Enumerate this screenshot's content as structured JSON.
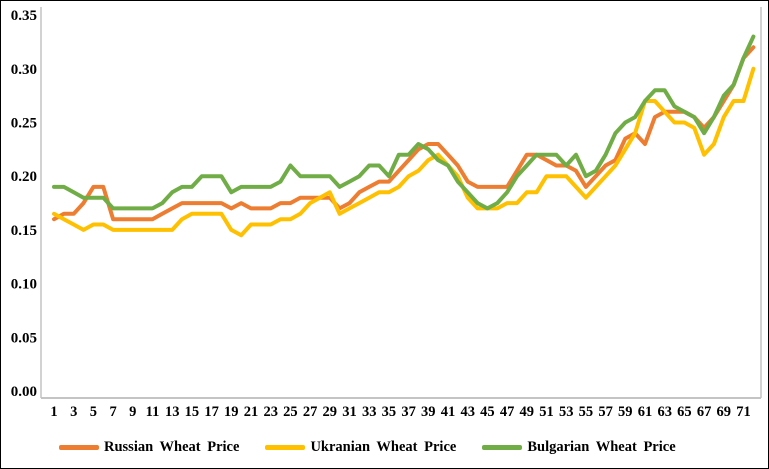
{
  "figure": {
    "background": "#ffffff",
    "border_color": "#000000"
  },
  "axes": {
    "y_ticks": [
      "0.00",
      "0.05",
      "0.10",
      "0.15",
      "0.20",
      "0.25",
      "0.30",
      "0.35"
    ],
    "x_ticks": [
      1,
      3,
      5,
      7,
      9,
      11,
      13,
      15,
      17,
      19,
      21,
      23,
      25,
      27,
      29,
      31,
      33,
      35,
      37,
      39,
      41,
      43,
      45,
      47,
      49,
      51,
      53,
      55,
      57,
      59,
      61,
      63,
      65,
      67,
      69,
      71
    ],
    "axis_line_color": "#c4c4c4",
    "tick_label_color": "#000000"
  },
  "legend": {
    "position": "bottom",
    "items": [
      {
        "label": "Russian Wheat Price",
        "color": "#ED7D31"
      },
      {
        "label": "Ukranian Wheat Price",
        "color": "#FFC000"
      },
      {
        "label": "Bulgarian Wheat Price",
        "color": "#70AD47"
      }
    ]
  },
  "chart_data": {
    "type": "line",
    "title": "",
    "xlabel": "",
    "ylabel": "",
    "grid": false,
    "legend_position": "bottom",
    "xlim": [
      1,
      72
    ],
    "ylim": [
      0,
      0.35
    ],
    "x": [
      1,
      2,
      3,
      4,
      5,
      6,
      7,
      8,
      9,
      10,
      11,
      12,
      13,
      14,
      15,
      16,
      17,
      18,
      19,
      20,
      21,
      22,
      23,
      24,
      25,
      26,
      27,
      28,
      29,
      30,
      31,
      32,
      33,
      34,
      35,
      36,
      37,
      38,
      39,
      40,
      41,
      42,
      43,
      44,
      45,
      46,
      47,
      48,
      49,
      50,
      51,
      52,
      53,
      54,
      55,
      56,
      57,
      58,
      59,
      60,
      61,
      62,
      63,
      64,
      65,
      66,
      67,
      68,
      69,
      70,
      71,
      72
    ],
    "series": [
      {
        "name": "Russian Wheat Price",
        "color": "#ED7D31",
        "values": [
          0.16,
          0.165,
          0.165,
          0.175,
          0.19,
          0.19,
          0.16,
          0.16,
          0.16,
          0.16,
          0.16,
          0.165,
          0.17,
          0.175,
          0.175,
          0.175,
          0.175,
          0.175,
          0.17,
          0.175,
          0.17,
          0.17,
          0.17,
          0.175,
          0.175,
          0.18,
          0.18,
          0.18,
          0.18,
          0.17,
          0.175,
          0.185,
          0.19,
          0.195,
          0.195,
          0.205,
          0.215,
          0.225,
          0.23,
          0.23,
          0.22,
          0.21,
          0.195,
          0.19,
          0.19,
          0.19,
          0.19,
          0.205,
          0.22,
          0.22,
          0.215,
          0.21,
          0.21,
          0.205,
          0.19,
          0.2,
          0.21,
          0.215,
          0.235,
          0.24,
          0.23,
          0.255,
          0.26,
          0.26,
          0.26,
          0.255,
          0.245,
          0.255,
          0.27,
          0.285,
          0.31,
          0.32
        ]
      },
      {
        "name": "Ukranian Wheat Price",
        "color": "#FFC000",
        "values": [
          0.165,
          0.16,
          0.155,
          0.15,
          0.155,
          0.155,
          0.15,
          0.15,
          0.15,
          0.15,
          0.15,
          0.15,
          0.15,
          0.16,
          0.165,
          0.165,
          0.165,
          0.165,
          0.15,
          0.145,
          0.155,
          0.155,
          0.155,
          0.16,
          0.16,
          0.165,
          0.175,
          0.18,
          0.185,
          0.165,
          0.17,
          0.175,
          0.18,
          0.185,
          0.185,
          0.19,
          0.2,
          0.205,
          0.215,
          0.22,
          0.21,
          0.2,
          0.18,
          0.17,
          0.17,
          0.17,
          0.175,
          0.175,
          0.185,
          0.185,
          0.2,
          0.2,
          0.2,
          0.19,
          0.18,
          0.19,
          0.2,
          0.21,
          0.225,
          0.24,
          0.27,
          0.27,
          0.26,
          0.25,
          0.25,
          0.245,
          0.22,
          0.23,
          0.255,
          0.27,
          0.27,
          0.3
        ]
      },
      {
        "name": "Bulgarian Wheat Price",
        "color": "#70AD47",
        "values": [
          0.19,
          0.19,
          0.185,
          0.18,
          0.18,
          0.18,
          0.17,
          0.17,
          0.17,
          0.17,
          0.17,
          0.175,
          0.185,
          0.19,
          0.19,
          0.2,
          0.2,
          0.2,
          0.185,
          0.19,
          0.19,
          0.19,
          0.19,
          0.195,
          0.21,
          0.2,
          0.2,
          0.2,
          0.2,
          0.19,
          0.195,
          0.2,
          0.21,
          0.21,
          0.2,
          0.22,
          0.22,
          0.23,
          0.225,
          0.215,
          0.21,
          0.195,
          0.185,
          0.175,
          0.17,
          0.175,
          0.185,
          0.2,
          0.21,
          0.22,
          0.22,
          0.22,
          0.21,
          0.22,
          0.2,
          0.205,
          0.22,
          0.24,
          0.25,
          0.255,
          0.27,
          0.28,
          0.28,
          0.265,
          0.26,
          0.255,
          0.24,
          0.255,
          0.275,
          0.285,
          0.31,
          0.33
        ]
      }
    ]
  }
}
